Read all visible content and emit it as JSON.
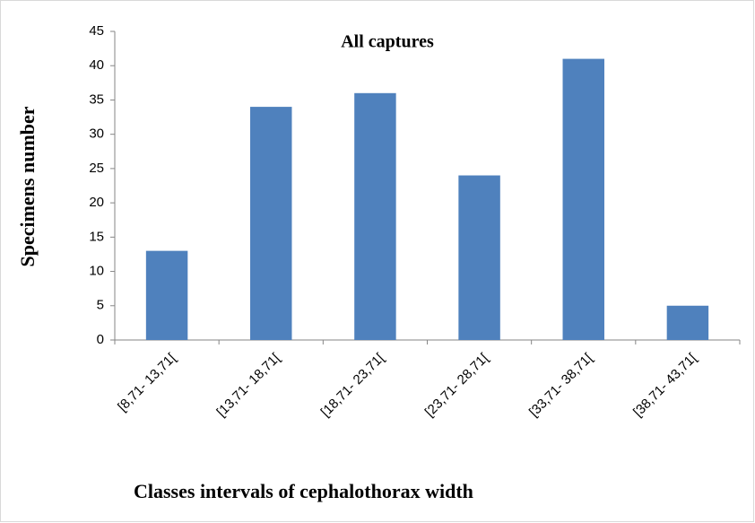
{
  "chart_data": {
    "type": "bar",
    "title": "All captures",
    "x_label": "Classes intervals of cephalothorax width",
    "y_label": "Specimens number",
    "categories": [
      "[8,71- 13,71[",
      "[13,71- 18,71[",
      "[18,71- 23,71[",
      "[23,71- 28,71[",
      "[33,71- 38,71[",
      "[38,71- 43,71["
    ],
    "values": [
      13,
      34,
      36,
      24,
      41,
      5
    ],
    "color": "#4f81bd",
    "ylim": [
      0,
      45
    ],
    "yticks": [
      0,
      5,
      10,
      15,
      20,
      25,
      30,
      35,
      40,
      45
    ],
    "grid": false
  }
}
